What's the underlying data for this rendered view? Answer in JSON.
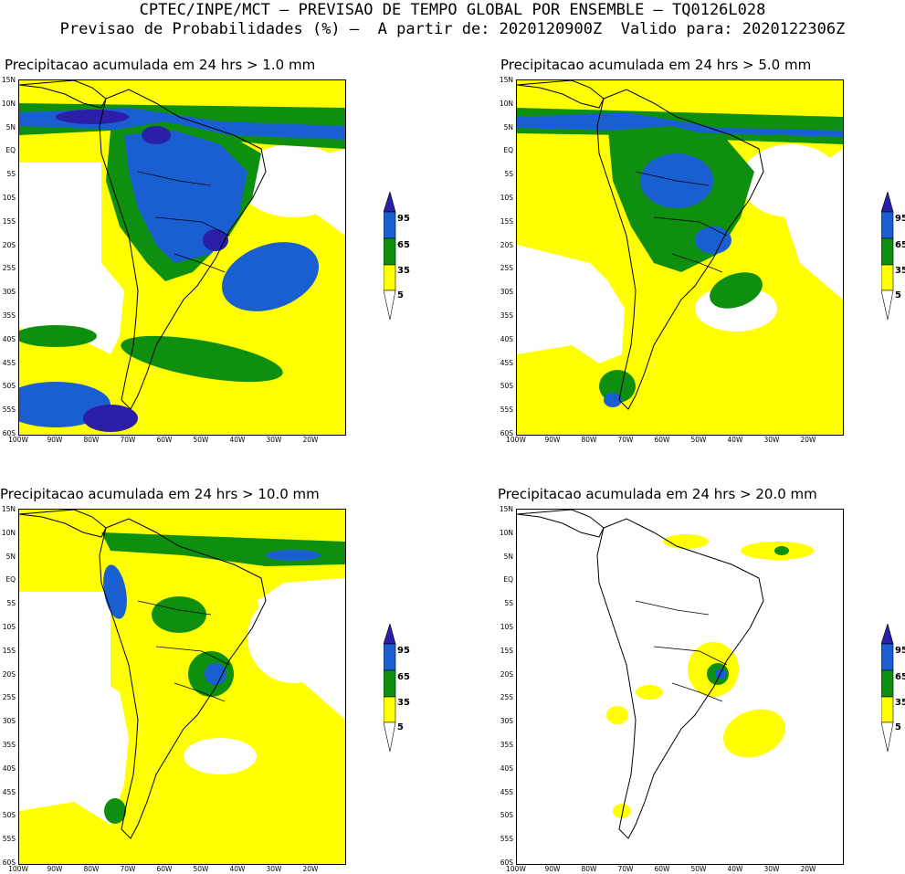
{
  "header": {
    "line1": "CPTEC/INPE/MCT – PREVISAO DE TEMPO GLOBAL POR ENSEMBLE – TQ0126L028",
    "line2": "Previsao de Probabilidades (%) –  A partir de: 2020120900Z  Valido para: 2020122306Z"
  },
  "colors": {
    "c5": "#ffff00",
    "c35": "#0f8f0f",
    "c65": "#1a5fd1",
    "c95": "#2a1fa6"
  },
  "panels": [
    {
      "title": "Precipitacao acumulada em 24 hrs > 1.0 mm"
    },
    {
      "title": "Precipitacao acumulada em 24 hrs > 5.0 mm"
    },
    {
      "title": "Precipitacao acumulada em 24 hrs > 10.0 mm"
    },
    {
      "title": "Precipitacao acumulada em 24 hrs > 20.0 mm"
    }
  ],
  "axes": {
    "lat_labels": [
      "15N",
      "10N",
      "5N",
      "EQ",
      "5S",
      "10S",
      "15S",
      "20S",
      "25S",
      "30S",
      "35S",
      "40S",
      "45S",
      "50S",
      "55S",
      "60S"
    ],
    "lon_labels": [
      "100W",
      "90W",
      "80W",
      "70W",
      "60W",
      "50W",
      "40W",
      "30W",
      "20W"
    ]
  },
  "legend": {
    "levels": [
      "95",
      "65",
      "35",
      "5"
    ]
  }
}
